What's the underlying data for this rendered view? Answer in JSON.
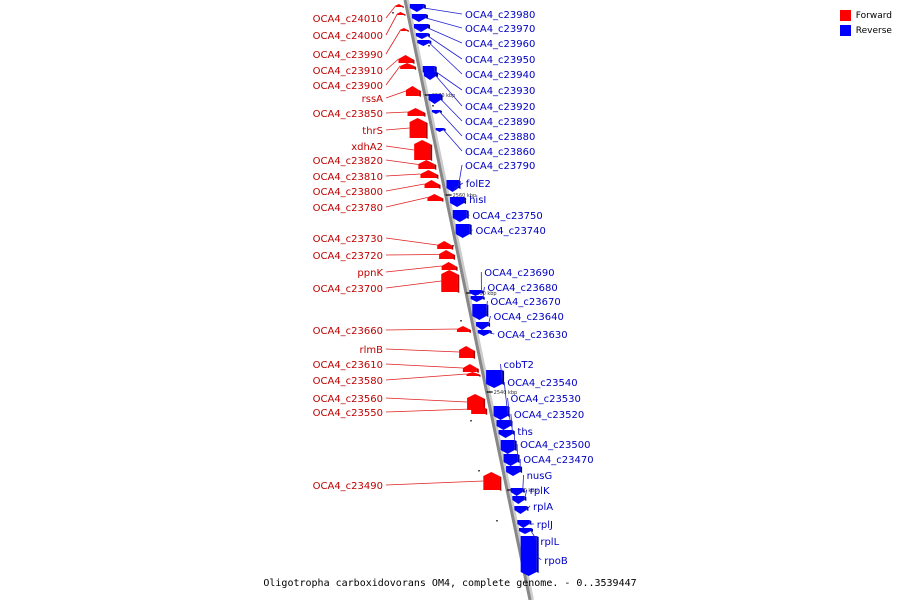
{
  "legend": [
    {
      "label": "Forward",
      "color": "#ff0000"
    },
    {
      "label": "Reverse",
      "color": "#0000ff"
    }
  ],
  "caption": "Oligotropha carboxidovorans OM4, complete genome. - 0..3539447",
  "colors": {
    "forward": "#ff0000",
    "reverse": "#0000ff",
    "backbone": "#888888",
    "forward_line": "#e02020",
    "reverse_line": "#2020d0"
  },
  "ticks": [
    "2570 kbp",
    "2560 kbp",
    "2550 kbp",
    "2540 kbp",
    "2530 kbp"
  ],
  "forward_genes": [
    "OCA4_c24010",
    "OCA4_c24000",
    "OCA4_c23990",
    "OCA4_c23910",
    "OCA4_c23900",
    "rssA",
    "OCA4_c23850",
    "thrS",
    "xdhA2",
    "OCA4_c23820",
    "OCA4_c23810",
    "OCA4_c23800",
    "OCA4_c23780",
    "OCA4_c23730",
    "OCA4_c23720",
    "ppnK",
    "OCA4_c23700",
    "OCA4_c23660",
    "rlmB",
    "OCA4_c23610",
    "OCA4_c23580",
    "OCA4_c23560",
    "OCA4_c23550",
    "OCA4_c23490"
  ],
  "reverse_genes": [
    "OCA4_c23980",
    "OCA4_c23970",
    "OCA4_c23960",
    "OCA4_c23950",
    "OCA4_c23940",
    "OCA4_c23930",
    "OCA4_c23920",
    "OCA4_c23890",
    "OCA4_c23880",
    "OCA4_c23860",
    "OCA4_c23790",
    "folE2",
    "hisI",
    "OCA4_c23750",
    "OCA4_c23740",
    "OCA4_c23690",
    "OCA4_c23680",
    "OCA4_c23670",
    "OCA4_c23640",
    "OCA4_c23630",
    "cobT2",
    "OCA4_c23540",
    "OCA4_c23530",
    "OCA4_c23520",
    "ths",
    "OCA4_c23500",
    "OCA4_c23470",
    "nusG",
    "rplK",
    "rplA",
    "rplJ",
    "rplL",
    "rpoB"
  ]
}
